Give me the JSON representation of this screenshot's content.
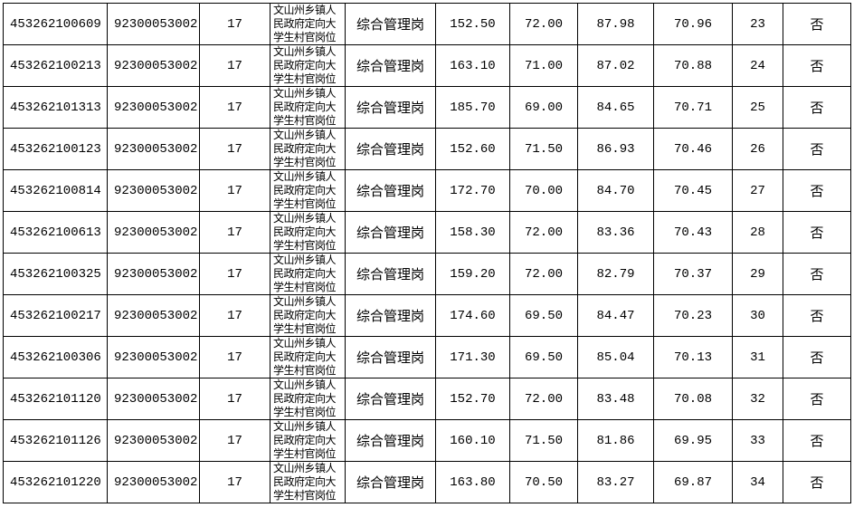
{
  "table": {
    "rows": [
      [
        "453262100609",
        "92300053002",
        "17",
        "文山州乡镇人民政府定向大学生村官岗位",
        "综合管理岗",
        "152.50",
        "72.00",
        "87.98",
        "70.96",
        "23",
        "否"
      ],
      [
        "453262100213",
        "92300053002",
        "17",
        "文山州乡镇人民政府定向大学生村官岗位",
        "综合管理岗",
        "163.10",
        "71.00",
        "87.02",
        "70.88",
        "24",
        "否"
      ],
      [
        "453262101313",
        "92300053002",
        "17",
        "文山州乡镇人民政府定向大学生村官岗位",
        "综合管理岗",
        "185.70",
        "69.00",
        "84.65",
        "70.71",
        "25",
        "否"
      ],
      [
        "453262100123",
        "92300053002",
        "17",
        "文山州乡镇人民政府定向大学生村官岗位",
        "综合管理岗",
        "152.60",
        "71.50",
        "86.93",
        "70.46",
        "26",
        "否"
      ],
      [
        "453262100814",
        "92300053002",
        "17",
        "文山州乡镇人民政府定向大学生村官岗位",
        "综合管理岗",
        "172.70",
        "70.00",
        "84.70",
        "70.45",
        "27",
        "否"
      ],
      [
        "453262100613",
        "92300053002",
        "17",
        "文山州乡镇人民政府定向大学生村官岗位",
        "综合管理岗",
        "158.30",
        "72.00",
        "83.36",
        "70.43",
        "28",
        "否"
      ],
      [
        "453262100325",
        "92300053002",
        "17",
        "文山州乡镇人民政府定向大学生村官岗位",
        "综合管理岗",
        "159.20",
        "72.00",
        "82.79",
        "70.37",
        "29",
        "否"
      ],
      [
        "453262100217",
        "92300053002",
        "17",
        "文山州乡镇人民政府定向大学生村官岗位",
        "综合管理岗",
        "174.60",
        "69.50",
        "84.47",
        "70.23",
        "30",
        "否"
      ],
      [
        "453262100306",
        "92300053002",
        "17",
        "文山州乡镇人民政府定向大学生村官岗位",
        "综合管理岗",
        "171.30",
        "69.50",
        "85.04",
        "70.13",
        "31",
        "否"
      ],
      [
        "453262101120",
        "92300053002",
        "17",
        "文山州乡镇人民政府定向大学生村官岗位",
        "综合管理岗",
        "152.70",
        "72.00",
        "83.48",
        "70.08",
        "32",
        "否"
      ],
      [
        "453262101126",
        "92300053002",
        "17",
        "文山州乡镇人民政府定向大学生村官岗位",
        "综合管理岗",
        "160.10",
        "71.50",
        "81.86",
        "69.95",
        "33",
        "否"
      ],
      [
        "453262101220",
        "92300053002",
        "17",
        "文山州乡镇人民政府定向大学生村官岗位",
        "综合管理岗",
        "163.80",
        "70.50",
        "83.27",
        "69.87",
        "34",
        "否"
      ]
    ]
  }
}
